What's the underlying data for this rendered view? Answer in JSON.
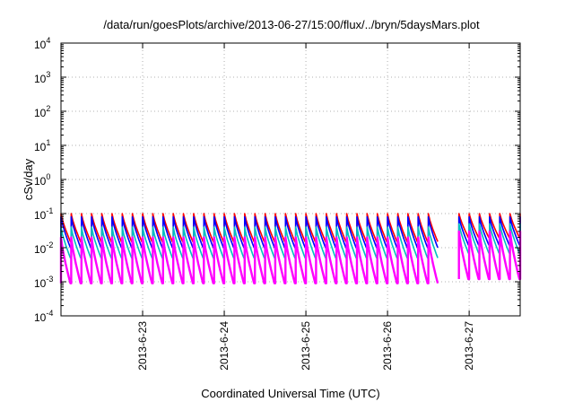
{
  "chart_data": {
    "type": "line",
    "title": "/data/run/goesPlots/archive/2013-06-27/15:00/flux/../bryn/5daysMars.plot",
    "xlabel": "Coordinated Universal Time (UTC)",
    "ylabel": "cSv/day",
    "y_scale": "log",
    "ylim": [
      0.0001,
      10000
    ],
    "y_ticks": [
      {
        "base": "10",
        "exp": "-4",
        "value": 0.0001
      },
      {
        "base": "10",
        "exp": "-3",
        "value": 0.001
      },
      {
        "base": "10",
        "exp": "-2",
        "value": 0.01
      },
      {
        "base": "10",
        "exp": "-1",
        "value": 0.1
      },
      {
        "base": "10",
        "exp": "0",
        "value": 1
      },
      {
        "base": "10",
        "exp": "1",
        "value": 10
      },
      {
        "base": "10",
        "exp": "2",
        "value": 100
      },
      {
        "base": "10",
        "exp": "3",
        "value": 1000
      },
      {
        "base": "10",
        "exp": "4",
        "value": 10000
      }
    ],
    "xlim": [
      "2013-06-22 00:00",
      "2013-06-27 15:00"
    ],
    "x_ticks": [
      {
        "label": "2013-6-23",
        "value": "2013-06-23 00:00"
      },
      {
        "label": "2013-6-24",
        "value": "2013-06-24 00:00"
      },
      {
        "label": "2013-6-25",
        "value": "2013-06-25 00:00"
      },
      {
        "label": "2013-6-26",
        "value": "2013-06-26 00:00"
      },
      {
        "label": "2013-6-27",
        "value": "2013-06-27 00:00"
      }
    ],
    "grid": true,
    "series": [
      {
        "color": "#ff0000",
        "peak": 0.1,
        "trough": 0.015,
        "late_peak": 0.1,
        "late_trough": 0.02
      },
      {
        "color": "#0000ff",
        "peak": 0.08,
        "trough": 0.01,
        "late_peak": 0.08,
        "late_trough": 0.012
      },
      {
        "color": "#00c0c0",
        "peak": 0.04,
        "trough": 0.005,
        "late_peak": 0.05,
        "late_trough": 0.007
      },
      {
        "color": "#ff00ff",
        "peak": 0.02,
        "trough": 0.0009,
        "late_peak": 0.03,
        "late_trough": 0.0012
      }
    ],
    "cycle_hours": 3
  }
}
